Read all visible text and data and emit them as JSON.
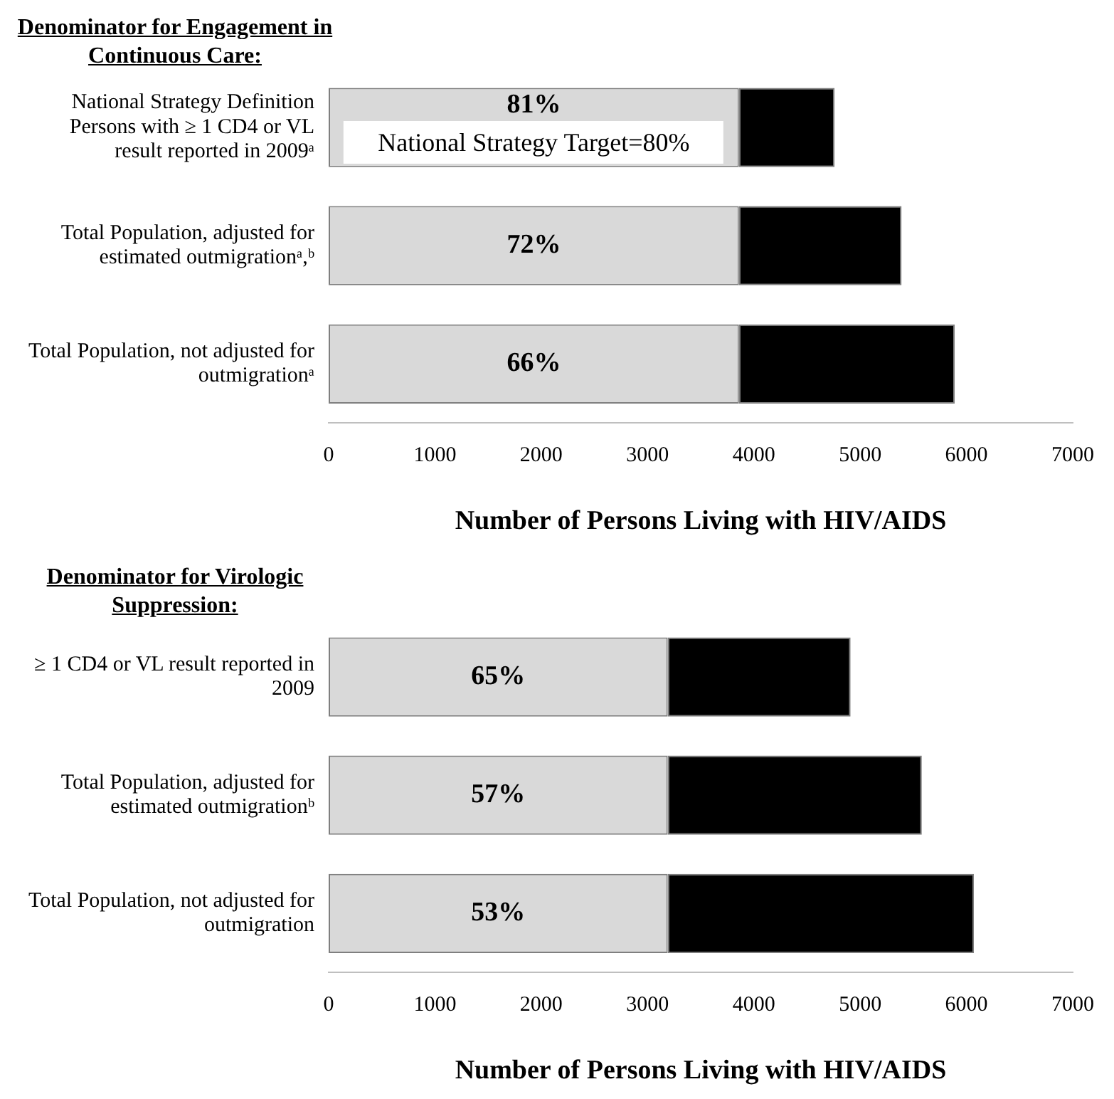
{
  "chart_data": [
    {
      "type": "bar",
      "orientation": "horizontal",
      "stacked": true,
      "title": "Denominator for Engagement in Continuous Care:",
      "xlabel": "Number of Persons Living with HIV/AIDS",
      "categories": [
        "National Strategy Definition Persons with ≥ 1 CD4 or VL result reported in 2009ᵃ",
        "Total Population, adjusted for estimated outmigrationᵃ,ᵇ",
        "Total Population, not adjusted for outmigrationᵃ"
      ],
      "series": [
        {
          "color": "#d9d9d9",
          "values": [
            3860,
            3860,
            3860
          ]
        },
        {
          "color": "#000000",
          "values": [
            900,
            1530,
            2030
          ]
        }
      ],
      "xlim": [
        0,
        7000
      ],
      "xticks": [
        0,
        1000,
        2000,
        3000,
        4000,
        5000,
        6000,
        7000
      ],
      "grid": false,
      "legend": false,
      "annotations": [
        "81%",
        "72%",
        "66%",
        "National Strategy Target=80%"
      ]
    },
    {
      "type": "bar",
      "orientation": "horizontal",
      "stacked": true,
      "title": "Denominator for Virologic Suppression:",
      "xlabel": "Number of Persons Living with HIV/AIDS",
      "categories": [
        "≥ 1 CD4 or VL result reported in 2009",
        "Total Population, adjusted for estimated outmigrationᵇ",
        "Total Population, not adjusted for outmigration"
      ],
      "series": [
        {
          "color": "#d9d9d9",
          "values": [
            3190,
            3190,
            3190
          ]
        },
        {
          "color": "#000000",
          "values": [
            1720,
            2390,
            2880
          ]
        }
      ],
      "xlim": [
        0,
        7000
      ],
      "xticks": [
        0,
        1000,
        2000,
        3000,
        4000,
        5000,
        6000,
        7000
      ],
      "grid": false,
      "legend": false,
      "annotations": [
        "65%",
        "57%",
        "53%"
      ]
    }
  ]
}
